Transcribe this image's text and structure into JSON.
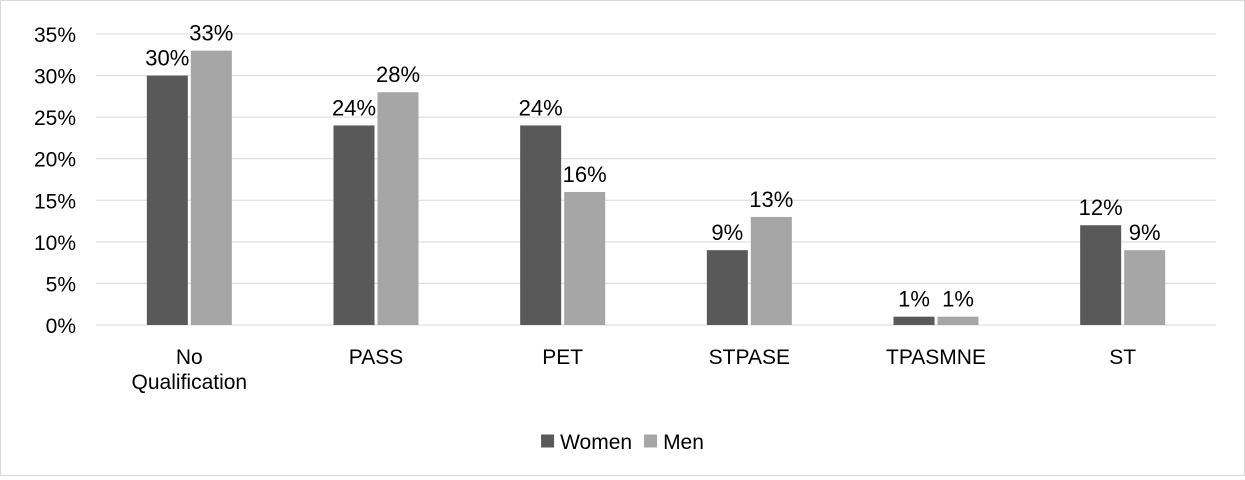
{
  "chart_data": {
    "type": "bar",
    "categories": [
      [
        "No",
        "Qualification"
      ],
      [
        "PASS"
      ],
      [
        "PET"
      ],
      [
        "STPASE"
      ],
      [
        "TPASMNE"
      ],
      [
        "ST"
      ]
    ],
    "series": [
      {
        "name": "Women",
        "values": [
          30,
          24,
          24,
          9,
          1,
          12
        ],
        "color": "#595959"
      },
      {
        "name": "Men",
        "values": [
          33,
          28,
          16,
          13,
          1,
          9
        ],
        "color": "#a6a6a6"
      }
    ],
    "ylim": [
      0,
      35
    ],
    "yticks": [
      0,
      5,
      10,
      15,
      20,
      25,
      30,
      35
    ],
    "tick_suffix": "%",
    "value_suffix": "%",
    "grid": true,
    "legend_position": "bottom"
  }
}
